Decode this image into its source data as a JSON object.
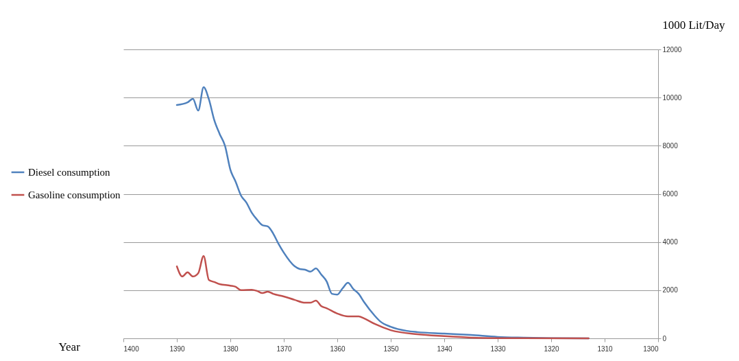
{
  "chart_data": {
    "type": "line",
    "xlabel": "Year",
    "ylabel": "1000 Lit/Day",
    "series": [
      {
        "name": "Diesel consumption",
        "color": "#4f81bd",
        "x": [
          1390,
          1388,
          1387,
          1386,
          1385,
          1384,
          1383,
          1382,
          1381,
          1380,
          1379,
          1378,
          1377,
          1376,
          1375,
          1374,
          1373,
          1372,
          1371,
          1370,
          1368,
          1367,
          1366,
          1365,
          1364,
          1363,
          1362,
          1361,
          1360,
          1359,
          1358,
          1357,
          1356,
          1355,
          1353,
          1352,
          1350,
          1347,
          1345,
          1340,
          1335,
          1330,
          1325,
          1320,
          1313
        ],
        "values": [
          9690,
          9800,
          9950,
          9460,
          10430,
          9920,
          9060,
          8490,
          8000,
          7010,
          6500,
          5930,
          5640,
          5220,
          4930,
          4700,
          4650,
          4360,
          3930,
          3560,
          3000,
          2880,
          2850,
          2770,
          2910,
          2650,
          2370,
          1850,
          1820,
          2080,
          2310,
          2050,
          1850,
          1510,
          940,
          710,
          480,
          310,
          260,
          200,
          140,
          60,
          30,
          10,
          0
        ]
      },
      {
        "name": "Gasoline consumption",
        "color": "#c0504d",
        "x": [
          1390,
          1389,
          1388,
          1387,
          1386,
          1385,
          1384,
          1383,
          1382,
          1380,
          1379,
          1378,
          1376,
          1375,
          1374,
          1373,
          1372,
          1370,
          1368,
          1366,
          1365,
          1364,
          1363,
          1362,
          1360,
          1358,
          1356,
          1355,
          1353,
          1350,
          1345,
          1340,
          1335,
          1330,
          1313
        ],
        "values": [
          2990,
          2570,
          2740,
          2570,
          2710,
          3420,
          2420,
          2340,
          2250,
          2190,
          2140,
          2000,
          2020,
          1970,
          1880,
          1940,
          1850,
          1740,
          1600,
          1480,
          1480,
          1570,
          1340,
          1250,
          1030,
          910,
          910,
          830,
          600,
          340,
          170,
          90,
          30,
          10,
          0
        ]
      }
    ],
    "xlim": [
      1400,
      1300
    ],
    "xticks": [
      1400,
      1390,
      1380,
      1370,
      1360,
      1350,
      1340,
      1330,
      1320,
      1310,
      1300
    ],
    "ylim": [
      0,
      12000
    ],
    "yticks": [
      0,
      2000,
      4000,
      6000,
      8000,
      10000,
      12000
    ],
    "grid": "y",
    "legend": "left",
    "marker": "none",
    "line_style": "solid"
  }
}
